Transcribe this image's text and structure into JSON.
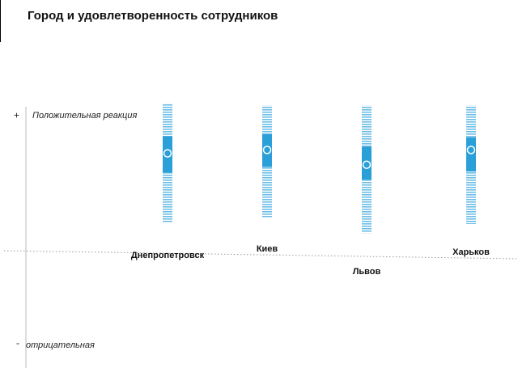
{
  "chart_data": {
    "type": "box",
    "title": "Город и удовлетворенность сотрудников",
    "y_label_top": "Положительная реакция",
    "y_label_bottom": "отрицательная",
    "categories": [
      "Днепропетровск",
      "Киев",
      "Львов",
      "Харьков"
    ],
    "boxes": [
      {
        "min": 0.06,
        "q1": 0.5,
        "median": 0.67,
        "q3": 0.82,
        "max": 1.11
      },
      {
        "min": 0.11,
        "q1": 0.55,
        "median": 0.7,
        "q3": 0.84,
        "max": 1.09
      },
      {
        "min": -0.03,
        "q1": 0.44,
        "median": 0.57,
        "q3": 0.73,
        "max": 1.09
      },
      {
        "min": 0.05,
        "q1": 0.51,
        "median": 0.7,
        "q3": 0.81,
        "max": 1.09
      }
    ],
    "color": "#2a9fd8",
    "whisker_color": "#6cbde6",
    "ylim": [
      -1.2,
      1.15
    ],
    "yticks": [
      {
        "value": 1,
        "label": "+"
      },
      {
        "value": -1,
        "label": "-"
      }
    ]
  }
}
